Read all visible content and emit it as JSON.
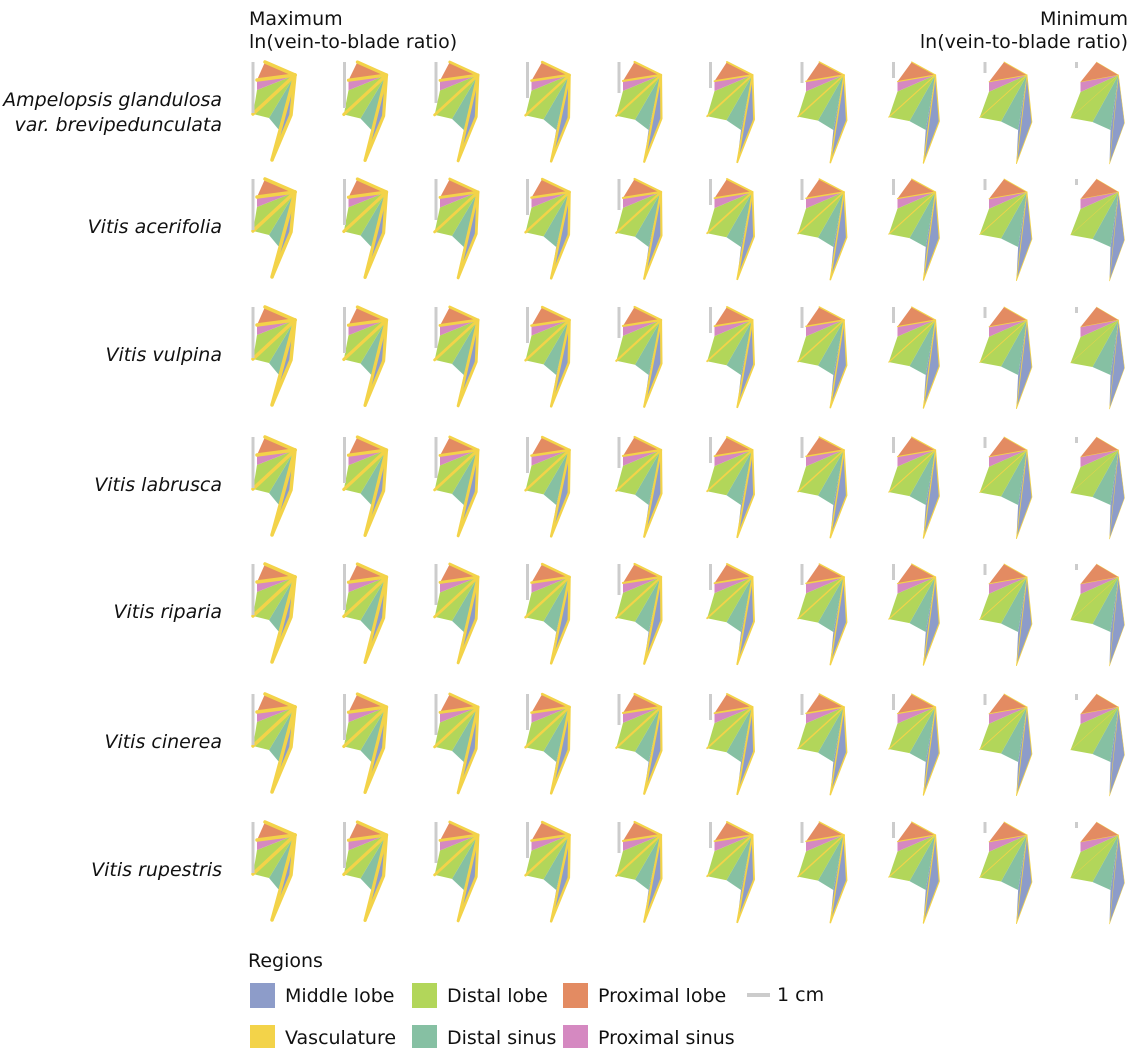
{
  "header": {
    "left": {
      "line1": "Maximum",
      "line2": "ln(vein-to-blade ratio)"
    },
    "right": {
      "line1": "Minimum",
      "line2": "ln(vein-to-blade ratio)"
    }
  },
  "rows": [
    {
      "name": "Ampelopsis glandulosa",
      "name2": "var. brevipedunculata"
    },
    {
      "name": "Vitis acerifolia"
    },
    {
      "name": "Vitis vulpina"
    },
    {
      "name": "Vitis labrusca"
    },
    {
      "name": "Vitis riparia"
    },
    {
      "name": "Vitis cinerea"
    },
    {
      "name": "Vitis rupestris"
    }
  ],
  "legend": {
    "title": "Regions",
    "items": [
      {
        "label": "Middle lobe",
        "color": "#8d9cc9"
      },
      {
        "label": "Distal lobe",
        "color": "#b2d65a"
      },
      {
        "label": "Proximal lobe",
        "color": "#e38b62"
      },
      {
        "label": "Vasculature",
        "color": "#f3d349"
      },
      {
        "label": "Distal sinus",
        "color": "#86c0a3"
      },
      {
        "label": "Proximal sinus",
        "color": "#d589c1"
      }
    ],
    "scale": "1 cm"
  }
}
